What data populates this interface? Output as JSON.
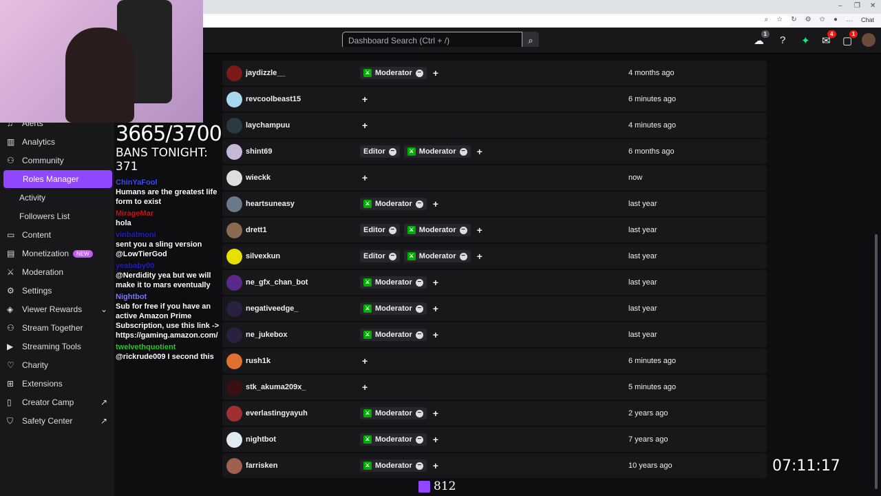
{
  "browser": {
    "chat_label": "Chat",
    "min": "–",
    "max": "❐",
    "close": "✕"
  },
  "topnav": {
    "search_placeholder": "Dashboard Search (Ctrl + /)",
    "notifications": {
      "drops": "1",
      "inbox": "4",
      "whispers": "1"
    }
  },
  "sidebar": {
    "items": [
      {
        "label": "Alerts",
        "icon": "bell"
      },
      {
        "label": "Analytics",
        "icon": "chart"
      },
      {
        "label": "Community",
        "icon": "people"
      },
      {
        "label": "Roles Manager",
        "sub": true,
        "active": true
      },
      {
        "label": "Activity",
        "sub": true
      },
      {
        "label": "Followers List",
        "sub": true
      },
      {
        "label": "Content",
        "icon": "film"
      },
      {
        "label": "Monetization",
        "icon": "money",
        "badge": "NEW"
      },
      {
        "label": "Moderation",
        "icon": "sword"
      },
      {
        "label": "Settings",
        "icon": "gear"
      },
      {
        "label": "Viewer Rewards",
        "icon": "gift",
        "chevron": true
      },
      {
        "label": "Stream Together",
        "icon": "users-plus"
      },
      {
        "label": "Streaming Tools",
        "icon": "camera"
      },
      {
        "label": "Charity",
        "icon": "heart-hand"
      },
      {
        "label": "Extensions",
        "icon": "puzzle"
      },
      {
        "label": "Creator Camp",
        "icon": "book",
        "external": true
      },
      {
        "label": "Safety Center",
        "icon": "shield",
        "external": true
      }
    ]
  },
  "roles": {
    "moderator": "Moderator",
    "editor": "Editor"
  },
  "users": [
    {
      "name": "jaydizzle__",
      "roles": [
        "Moderator"
      ],
      "date": "4 months ago",
      "color": "#7a1a1a"
    },
    {
      "name": "revcoolbeast15",
      "roles": [],
      "date": "6 minutes ago",
      "color": "#a8d8f0"
    },
    {
      "name": "laychampuu",
      "roles": [],
      "date": "4 minutes ago",
      "color": "#2a3a40"
    },
    {
      "name": "shint69",
      "roles": [
        "Editor",
        "Moderator"
      ],
      "date": "6 months ago",
      "color": "#c8b8d8"
    },
    {
      "name": "wieckk",
      "roles": [],
      "date": "now",
      "color": "#ddd"
    },
    {
      "name": "heartsuneasy",
      "roles": [
        "Moderator"
      ],
      "date": "last year",
      "color": "#6a7a8a"
    },
    {
      "name": "drett1",
      "roles": [
        "Editor",
        "Moderator"
      ],
      "date": "last year",
      "color": "#8a6a50"
    },
    {
      "name": "silvexkun",
      "roles": [
        "Editor",
        "Moderator"
      ],
      "date": "last year",
      "color": "#e8e000"
    },
    {
      "name": "ne_gfx_chan_bot",
      "roles": [
        "Moderator"
      ],
      "date": "last year",
      "color": "#5a2a8a"
    },
    {
      "name": "negativeedge_",
      "roles": [
        "Moderator"
      ],
      "date": "last year",
      "color": "#2a2040"
    },
    {
      "name": "ne_jukebox",
      "roles": [
        "Moderator"
      ],
      "date": "last year",
      "color": "#2a2040"
    },
    {
      "name": "rush1k",
      "roles": [],
      "date": "6 minutes ago",
      "color": "#e07030"
    },
    {
      "name": "stk_akuma209x_",
      "roles": [],
      "date": "5 minutes ago",
      "color": "#3a1010"
    },
    {
      "name": "everlastingyayuh",
      "roles": [
        "Moderator"
      ],
      "date": "2 years ago",
      "color": "#a03030"
    },
    {
      "name": "nightbot",
      "roles": [
        "Moderator"
      ],
      "date": "7 years ago",
      "color": "#e0e8f0"
    },
    {
      "name": "farrisken",
      "roles": [
        "Moderator"
      ],
      "date": "10 years ago",
      "color": "#a06050"
    }
  ],
  "overlay": {
    "ban_counter": "3665/3700",
    "bans_tonight": "BANS TONIGHT: 371",
    "timer": "07:11:17",
    "viewer_count": "812",
    "chat": [
      {
        "user": "ChinYaFool",
        "color": "#3a4aff",
        "message": "Humans are the greatest life form to exist"
      },
      {
        "user": "MirageMar",
        "color": "#d01010",
        "message": "hola"
      },
      {
        "user": "vinbatmoni",
        "color": "#2020c0",
        "message": "sent you a sling version @LowTierGod"
      },
      {
        "user": "yeababy00",
        "color": "#2020c0",
        "message": "@Nerdidity yea but we will make it to mars eventually"
      },
      {
        "user": "Nightbot",
        "color": "#7a7aff",
        "message": "Sub for free if you have an active Amazon Prime Subscription, use this link -> https://gaming.amazon.com/"
      },
      {
        "user": "twelvethquotient",
        "color": "#20d020",
        "message": "@rickrude009 I second this"
      }
    ]
  }
}
